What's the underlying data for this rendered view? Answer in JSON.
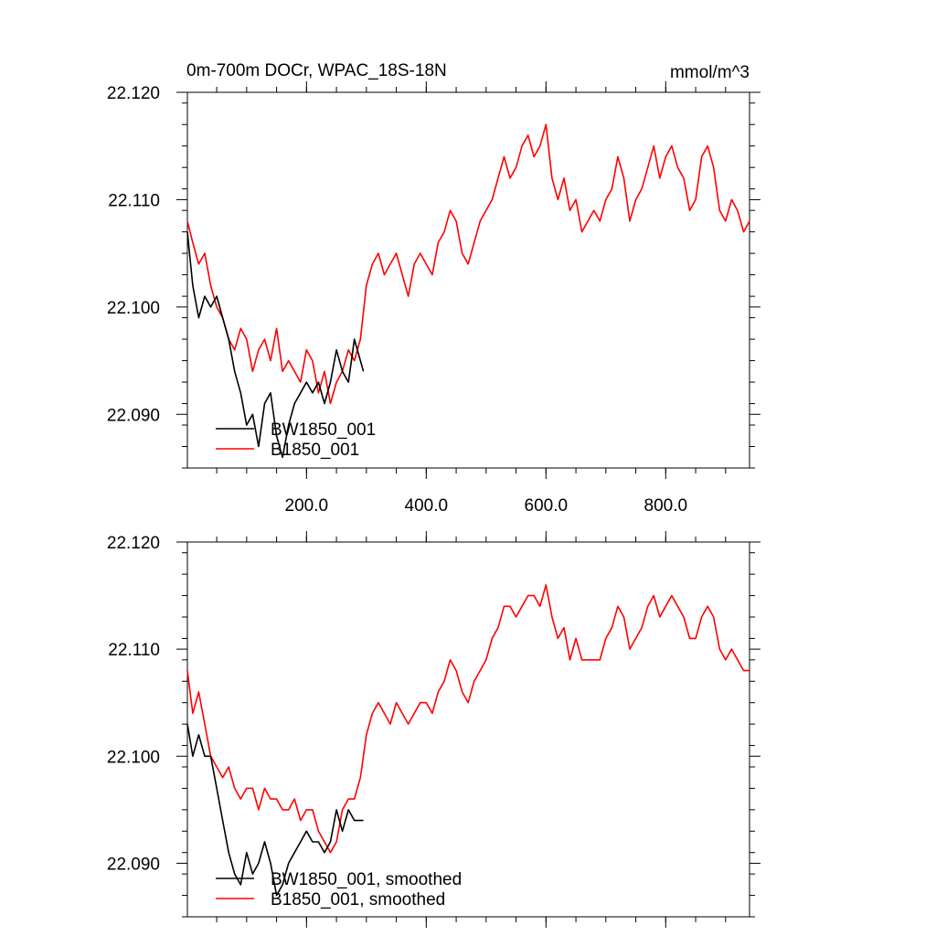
{
  "header": {
    "title": "0m-700m DOCr, WPAC_18S-18N",
    "units": "mmol/m^3"
  },
  "chart_data": [
    {
      "type": "line",
      "title": "0m-700m DOCr, WPAC_18S-18N",
      "units": "mmol/m^3",
      "xlim": [
        1,
        940
      ],
      "ylim": [
        22.085,
        22.12
      ],
      "x_ticks": [
        200,
        400,
        600,
        800
      ],
      "x_tick_labels": [
        "200.0",
        "400.0",
        "600.0",
        "800.0"
      ],
      "y_ticks": [
        22.09,
        22.1,
        22.11,
        22.12
      ],
      "y_tick_labels": [
        "22.090",
        "22.100",
        "22.110",
        "22.120"
      ],
      "legend_position": "bottom-left",
      "series": [
        {
          "name": "BW1850_001",
          "color": "#000000",
          "x": [
            1,
            10,
            20,
            30,
            40,
            50,
            60,
            70,
            80,
            90,
            100,
            110,
            120,
            130,
            140,
            150,
            160,
            170,
            180,
            190,
            200,
            210,
            220,
            230,
            240,
            250,
            260,
            270,
            280,
            290,
            295
          ],
          "y": [
            22.107,
            22.102,
            22.099,
            22.101,
            22.1,
            22.101,
            22.099,
            22.097,
            22.094,
            22.092,
            22.089,
            22.09,
            22.087,
            22.091,
            22.092,
            22.088,
            22.086,
            22.089,
            22.091,
            22.092,
            22.093,
            22.092,
            22.093,
            22.091,
            22.093,
            22.096,
            22.094,
            22.093,
            22.097,
            22.095,
            22.094
          ]
        },
        {
          "name": "B1850_001",
          "color": "#ff0000",
          "x": [
            1,
            10,
            20,
            30,
            40,
            50,
            60,
            70,
            80,
            90,
            100,
            110,
            120,
            130,
            140,
            150,
            160,
            170,
            180,
            190,
            200,
            210,
            220,
            230,
            240,
            250,
            260,
            270,
            280,
            290,
            300,
            310,
            320,
            330,
            340,
            350,
            360,
            370,
            380,
            390,
            400,
            410,
            420,
            430,
            440,
            450,
            460,
            470,
            480,
            490,
            500,
            510,
            520,
            530,
            540,
            550,
            560,
            570,
            580,
            590,
            600,
            610,
            620,
            630,
            640,
            650,
            660,
            670,
            680,
            690,
            700,
            710,
            720,
            730,
            740,
            750,
            760,
            770,
            780,
            790,
            800,
            810,
            820,
            830,
            840,
            850,
            860,
            870,
            880,
            890,
            900,
            910,
            920,
            930,
            940
          ],
          "y": [
            22.108,
            22.106,
            22.104,
            22.105,
            22.102,
            22.1,
            22.099,
            22.097,
            22.096,
            22.098,
            22.097,
            22.094,
            22.096,
            22.097,
            22.095,
            22.098,
            22.094,
            22.095,
            22.094,
            22.093,
            22.096,
            22.095,
            22.092,
            22.094,
            22.091,
            22.093,
            22.094,
            22.096,
            22.095,
            22.097,
            22.102,
            22.104,
            22.105,
            22.103,
            22.104,
            22.105,
            22.103,
            22.101,
            22.104,
            22.105,
            22.104,
            22.103,
            22.106,
            22.107,
            22.109,
            22.108,
            22.105,
            22.104,
            22.106,
            22.108,
            22.109,
            22.11,
            22.112,
            22.114,
            22.112,
            22.113,
            22.115,
            22.116,
            22.114,
            22.115,
            22.117,
            22.112,
            22.11,
            22.112,
            22.109,
            22.11,
            22.107,
            22.108,
            22.109,
            22.108,
            22.11,
            22.111,
            22.114,
            22.112,
            22.108,
            22.11,
            22.111,
            22.113,
            22.115,
            22.112,
            22.114,
            22.115,
            22.113,
            22.112,
            22.109,
            22.11,
            22.114,
            22.115,
            22.113,
            22.109,
            22.108,
            22.11,
            22.109,
            22.107,
            22.108
          ]
        }
      ]
    },
    {
      "type": "line",
      "xlim": [
        1,
        940
      ],
      "ylim": [
        22.085,
        22.12
      ],
      "x_ticks": [
        200,
        400,
        600,
        800
      ],
      "x_tick_labels": [],
      "y_ticks": [
        22.09,
        22.1,
        22.11,
        22.12
      ],
      "y_tick_labels": [
        "22.090",
        "22.100",
        "22.110",
        "22.120"
      ],
      "legend_position": "bottom-left",
      "series": [
        {
          "name": "BW1850_001, smoothed",
          "color": "#000000",
          "x": [
            1,
            10,
            20,
            30,
            40,
            50,
            60,
            70,
            80,
            90,
            100,
            110,
            120,
            130,
            140,
            150,
            160,
            170,
            180,
            190,
            200,
            210,
            220,
            230,
            240,
            250,
            260,
            270,
            280,
            290,
            295
          ],
          "y": [
            22.103,
            22.1,
            22.102,
            22.1,
            22.1,
            22.097,
            22.094,
            22.091,
            22.089,
            22.088,
            22.091,
            22.089,
            22.09,
            22.092,
            22.09,
            22.087,
            22.088,
            22.09,
            22.091,
            22.092,
            22.093,
            22.092,
            22.092,
            22.091,
            22.092,
            22.095,
            22.093,
            22.095,
            22.094,
            22.094,
            22.094
          ]
        },
        {
          "name": "B1850_001, smoothed",
          "color": "#ff0000",
          "x": [
            1,
            10,
            20,
            30,
            40,
            50,
            60,
            70,
            80,
            90,
            100,
            110,
            120,
            130,
            140,
            150,
            160,
            170,
            180,
            190,
            200,
            210,
            220,
            230,
            240,
            250,
            260,
            270,
            280,
            290,
            300,
            310,
            320,
            330,
            340,
            350,
            360,
            370,
            380,
            390,
            400,
            410,
            420,
            430,
            440,
            450,
            460,
            470,
            480,
            490,
            500,
            510,
            520,
            530,
            540,
            550,
            560,
            570,
            580,
            590,
            600,
            610,
            620,
            630,
            640,
            650,
            660,
            670,
            680,
            690,
            700,
            710,
            720,
            730,
            740,
            750,
            760,
            770,
            780,
            790,
            800,
            810,
            820,
            830,
            840,
            850,
            860,
            870,
            880,
            890,
            900,
            910,
            920,
            930,
            940
          ],
          "y": [
            22.108,
            22.104,
            22.106,
            22.103,
            22.1,
            22.099,
            22.098,
            22.099,
            22.097,
            22.096,
            22.097,
            22.097,
            22.095,
            22.097,
            22.096,
            22.096,
            22.095,
            22.095,
            22.096,
            22.094,
            22.095,
            22.095,
            22.093,
            22.092,
            22.091,
            22.092,
            22.095,
            22.096,
            22.096,
            22.098,
            22.102,
            22.104,
            22.105,
            22.104,
            22.103,
            22.105,
            22.104,
            22.103,
            22.104,
            22.105,
            22.105,
            22.104,
            22.106,
            22.107,
            22.109,
            22.108,
            22.106,
            22.105,
            22.107,
            22.108,
            22.109,
            22.111,
            22.112,
            22.114,
            22.114,
            22.113,
            22.114,
            22.115,
            22.115,
            22.114,
            22.116,
            22.113,
            22.111,
            22.112,
            22.109,
            22.111,
            22.109,
            22.109,
            22.109,
            22.109,
            22.111,
            22.112,
            22.114,
            22.113,
            22.11,
            22.111,
            22.112,
            22.114,
            22.115,
            22.113,
            22.114,
            22.115,
            22.114,
            22.113,
            22.111,
            22.111,
            22.113,
            22.114,
            22.113,
            22.11,
            22.109,
            22.11,
            22.109,
            22.108,
            22.108
          ]
        }
      ]
    }
  ]
}
